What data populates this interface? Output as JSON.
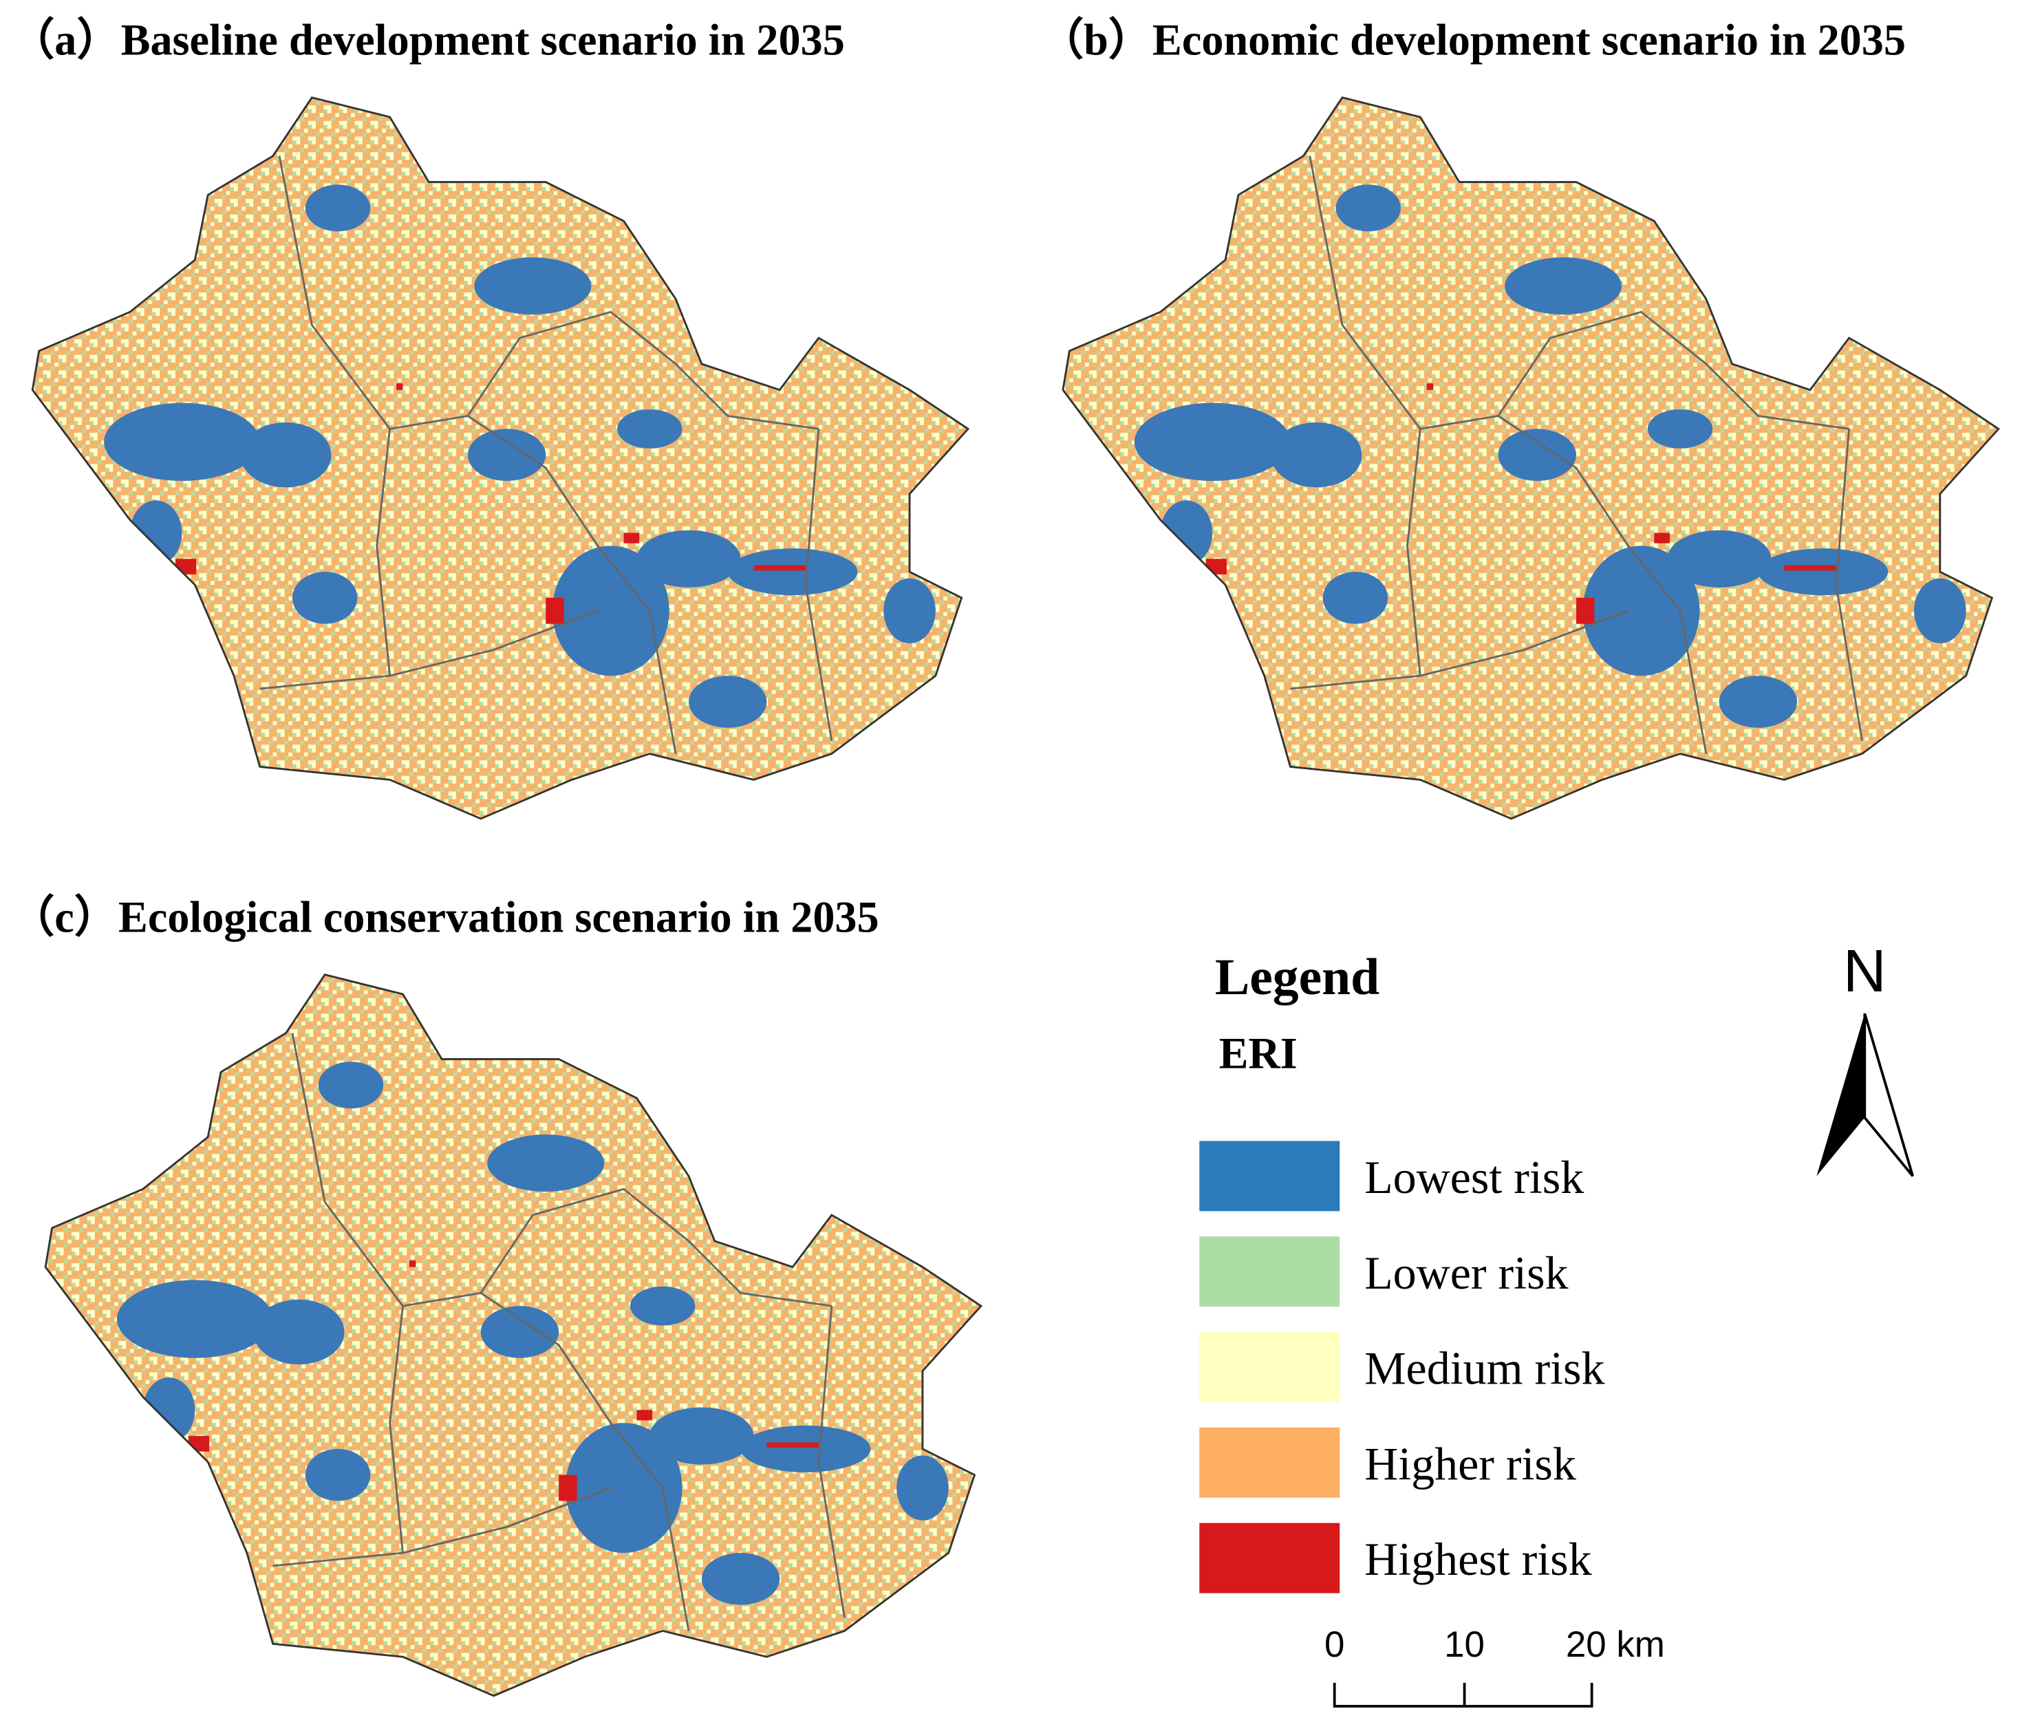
{
  "panels": [
    {
      "title": "（a）Baseline development scenario in 2035"
    },
    {
      "title": "（b）Economic development scenario in 2035"
    },
    {
      "title": "（c）Ecological conservation scenario in 2035"
    }
  ],
  "legend": {
    "title": "Legend",
    "subtitle": "ERI",
    "items": [
      {
        "label": "Lowest risk",
        "color": "#2b7bba"
      },
      {
        "label": "Lower risk",
        "color": "#abdda4"
      },
      {
        "label": "Medium risk",
        "color": "#ffffbf"
      },
      {
        "label": "Higher risk",
        "color": "#fdae61"
      },
      {
        "label": "Highest risk",
        "color": "#d7191c"
      }
    ]
  },
  "north": "N",
  "scale_bar": {
    "labels": [
      "0",
      "10",
      "20 km"
    ]
  }
}
